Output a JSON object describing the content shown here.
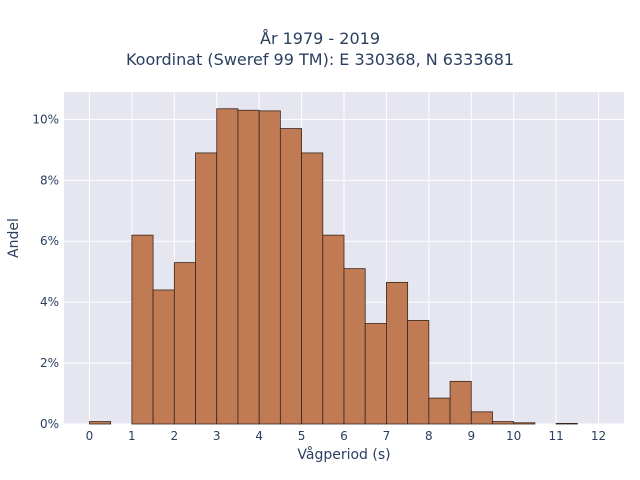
{
  "chart_data": {
    "type": "bar",
    "title_lines": [
      "År 1979 - 2019",
      "Koordinat (Sweref 99 TM): E 330368, N 6333681"
    ],
    "xlabel": "Vågperiod (s)",
    "ylabel": "Andel",
    "bin_width": 0.5,
    "bins": [
      {
        "x0": 0.0,
        "value": 0.08
      },
      {
        "x0": 0.5,
        "value": 0.0
      },
      {
        "x0": 1.0,
        "value": 6.2
      },
      {
        "x0": 1.5,
        "value": 4.4
      },
      {
        "x0": 2.0,
        "value": 5.3
      },
      {
        "x0": 2.5,
        "value": 8.9
      },
      {
        "x0": 3.0,
        "value": 10.35
      },
      {
        "x0": 3.5,
        "value": 10.3
      },
      {
        "x0": 4.0,
        "value": 10.28
      },
      {
        "x0": 4.5,
        "value": 9.7
      },
      {
        "x0": 5.0,
        "value": 8.9
      },
      {
        "x0": 5.5,
        "value": 6.2
      },
      {
        "x0": 6.0,
        "value": 5.1
      },
      {
        "x0": 6.5,
        "value": 3.3
      },
      {
        "x0": 7.0,
        "value": 4.65
      },
      {
        "x0": 7.5,
        "value": 3.4
      },
      {
        "x0": 8.0,
        "value": 0.85
      },
      {
        "x0": 8.5,
        "value": 1.4
      },
      {
        "x0": 9.0,
        "value": 0.4
      },
      {
        "x0": 9.5,
        "value": 0.08
      },
      {
        "x0": 10.0,
        "value": 0.04
      },
      {
        "x0": 10.5,
        "value": 0.0
      },
      {
        "x0": 11.0,
        "value": 0.02
      },
      {
        "x0": 11.5,
        "value": 0.0
      }
    ],
    "xlim": [
      -0.6,
      12.6
    ],
    "ylim": [
      0,
      10.9
    ],
    "x_ticks": [
      0,
      1,
      2,
      3,
      4,
      5,
      6,
      7,
      8,
      9,
      10,
      11,
      12
    ],
    "x_tick_labels": [
      "0",
      "1",
      "2",
      "3",
      "4",
      "5",
      "6",
      "7",
      "8",
      "9",
      "10",
      "11",
      "12"
    ],
    "y_ticks": [
      0,
      2,
      4,
      6,
      8,
      10
    ],
    "y_tick_labels": [
      "0%",
      "2%",
      "4%",
      "6%",
      "8%",
      "10%"
    ],
    "grid": true,
    "colors": {
      "bar_fill": "#c07b55",
      "bar_stroke": "#3a2518",
      "plot_background": "#e5e6f0",
      "grid": "#ffffff"
    }
  }
}
